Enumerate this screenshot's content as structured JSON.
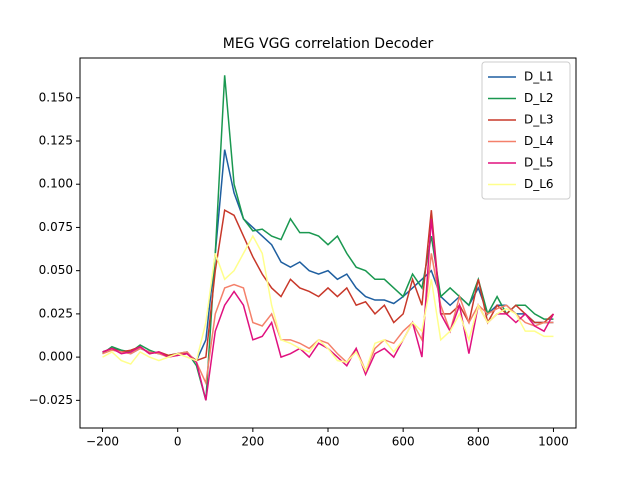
{
  "chart_data": {
    "type": "line",
    "title": "MEG VGG correlation Decoder",
    "x": [
      -200,
      -175,
      -150,
      -125,
      -100,
      -75,
      -50,
      -25,
      0,
      25,
      50,
      75,
      100,
      125,
      150,
      175,
      200,
      225,
      250,
      275,
      300,
      325,
      350,
      375,
      400,
      425,
      450,
      475,
      500,
      525,
      550,
      575,
      600,
      625,
      650,
      675,
      700,
      725,
      750,
      775,
      800,
      825,
      850,
      875,
      900,
      925,
      950,
      975,
      1000
    ],
    "series": [
      {
        "name": "D_L1",
        "color": "#1f5fa0",
        "values": [
          0.003,
          0.005,
          0.004,
          0.002,
          0.005,
          0.003,
          0.002,
          0.001,
          0.001,
          0.002,
          -0.002,
          0.01,
          0.06,
          0.12,
          0.095,
          0.08,
          0.075,
          0.07,
          0.065,
          0.055,
          0.052,
          0.055,
          0.05,
          0.048,
          0.05,
          0.045,
          0.048,
          0.04,
          0.035,
          0.033,
          0.033,
          0.031,
          0.035,
          0.04,
          0.045,
          0.05,
          0.035,
          0.03,
          0.035,
          0.03,
          0.04,
          0.025,
          0.03,
          0.03,
          0.025,
          0.025,
          0.02,
          0.02,
          0.02
        ]
      },
      {
        "name": "D_L2",
        "color": "#1a9850",
        "values": [
          0.002,
          0.006,
          0.004,
          0.003,
          0.007,
          0.004,
          0.002,
          0.001,
          0.002,
          0.003,
          -0.005,
          -0.025,
          0.06,
          0.163,
          0.1,
          0.08,
          0.073,
          0.074,
          0.07,
          0.068,
          0.08,
          0.072,
          0.072,
          0.07,
          0.065,
          0.07,
          0.06,
          0.052,
          0.05,
          0.045,
          0.045,
          0.04,
          0.035,
          0.048,
          0.04,
          0.07,
          0.035,
          0.04,
          0.035,
          0.03,
          0.045,
          0.025,
          0.035,
          0.025,
          0.03,
          0.03,
          0.025,
          0.022,
          0.022
        ]
      },
      {
        "name": "D_L3",
        "color": "#c8382a",
        "values": [
          0.003,
          0.005,
          0.003,
          0.004,
          0.006,
          0.002,
          0.003,
          0.001,
          0.002,
          0.002,
          -0.002,
          0.0,
          0.05,
          0.085,
          0.082,
          0.07,
          0.058,
          0.048,
          0.04,
          0.035,
          0.045,
          0.04,
          0.038,
          0.035,
          0.04,
          0.035,
          0.04,
          0.03,
          0.032,
          0.025,
          0.03,
          0.02,
          0.025,
          0.045,
          0.03,
          0.085,
          0.025,
          0.025,
          0.03,
          0.02,
          0.045,
          0.02,
          0.03,
          0.025,
          0.03,
          0.025,
          0.02,
          0.02,
          0.025
        ]
      },
      {
        "name": "D_L4",
        "color": "#f4806a",
        "values": [
          0.002,
          0.004,
          0.003,
          0.002,
          0.005,
          0.003,
          0.002,
          0.0,
          0.002,
          0.003,
          -0.003,
          -0.015,
          0.025,
          0.04,
          0.042,
          0.04,
          0.02,
          0.018,
          0.025,
          0.01,
          0.01,
          0.008,
          0.005,
          0.01,
          0.008,
          0.002,
          -0.003,
          0.005,
          -0.008,
          0.005,
          0.01,
          0.008,
          0.015,
          0.02,
          0.01,
          0.06,
          0.03,
          0.015,
          0.035,
          0.02,
          0.03,
          0.025,
          0.028,
          0.03,
          0.025,
          0.02,
          0.018,
          0.02,
          0.02
        ]
      },
      {
        "name": "D_L5",
        "color": "#e0117f",
        "values": [
          0.003,
          0.005,
          0.002,
          0.003,
          0.006,
          0.002,
          0.003,
          0.0,
          0.001,
          0.002,
          -0.003,
          -0.025,
          0.015,
          0.03,
          0.038,
          0.03,
          0.01,
          0.012,
          0.02,
          0.0,
          0.002,
          0.005,
          0.0,
          0.008,
          0.005,
          0.0,
          -0.005,
          0.005,
          -0.01,
          0.002,
          0.005,
          0.0,
          0.01,
          0.02,
          0.0,
          0.08,
          0.025,
          0.015,
          0.03,
          0.002,
          0.03,
          0.02,
          0.025,
          0.025,
          0.02,
          0.025,
          0.018,
          0.015,
          0.025
        ]
      },
      {
        "name": "D_L6",
        "color": "#ffff8c",
        "values": [
          0.0,
          0.003,
          -0.002,
          -0.004,
          0.003,
          0.0,
          -0.002,
          0.0,
          0.002,
          0.0,
          -0.002,
          0.02,
          0.06,
          0.045,
          0.05,
          0.06,
          0.07,
          0.06,
          0.03,
          0.01,
          0.008,
          0.005,
          0.003,
          0.01,
          0.005,
          -0.002,
          -0.003,
          0.003,
          -0.008,
          0.008,
          0.01,
          0.003,
          0.01,
          0.02,
          0.015,
          0.045,
          0.01,
          0.015,
          0.025,
          0.01,
          0.03,
          0.02,
          0.025,
          0.028,
          0.025,
          0.015,
          0.015,
          0.012,
          0.012
        ]
      }
    ],
    "xlim": [
      -260,
      1060
    ],
    "ylim": [
      -0.041,
      0.173
    ],
    "xticks": [
      {
        "value": -200,
        "label": "−200"
      },
      0,
      200,
      400,
      600,
      800,
      1000
    ],
    "yticks": [
      {
        "value": -0.025,
        "label": "−0.025"
      },
      {
        "value": 0,
        "label": "0.000"
      },
      {
        "value": 0.025,
        "label": "0.025"
      },
      {
        "value": 0.05,
        "label": "0.050"
      },
      {
        "value": 0.075,
        "label": "0.075"
      },
      {
        "value": 0.1,
        "label": "0.100"
      },
      {
        "value": 0.125,
        "label": "0.125"
      },
      {
        "value": 0.15,
        "label": "0.150"
      }
    ],
    "legend": "upper right"
  }
}
